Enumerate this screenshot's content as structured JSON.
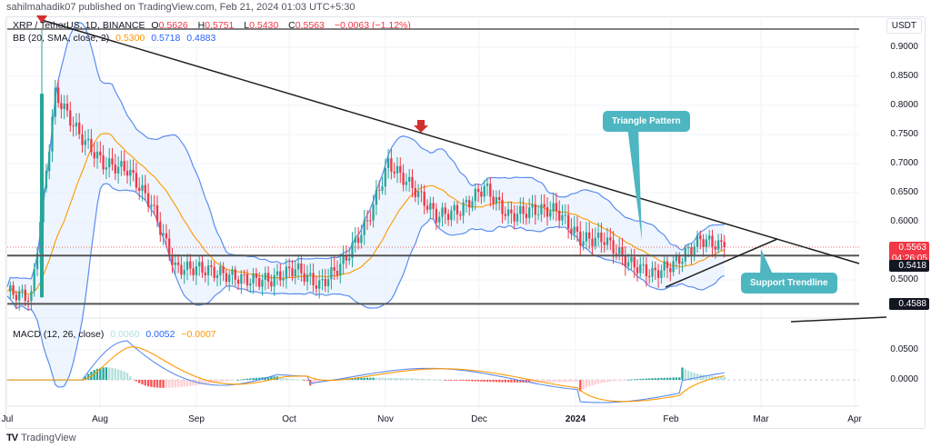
{
  "header": {
    "published": "sahilmahadik07 published on TradingView.com, Feb 21, 2024 01:03 UTC+5:30"
  },
  "legend": {
    "symbol": "XRP / TetherUS, 1D, BINANCE",
    "open_label": "O",
    "open": "0.5626",
    "high_label": "H",
    "high": "0.5751",
    "low_label": "L",
    "low": "0.5430",
    "close_label": "C",
    "close": "0.5563",
    "change": "−0.0063 (−1.12%)",
    "bb_label": "BB (20, SMA, close, 2)",
    "bb_basis": "0.5300",
    "bb_upper": "0.5718",
    "bb_lower": "0.4883",
    "macd_label": "MACD (12, 26, close)",
    "macd_hist": "0.0060",
    "macd_line": "0.0052",
    "macd_signal": "−0.0007"
  },
  "price_axis": {
    "currency": "USDT",
    "ticks": [
      "0.9000",
      "0.8500",
      "0.8000",
      "0.7500",
      "0.7000",
      "0.6500",
      "0.6000",
      "0.5000"
    ],
    "badges": {
      "last_price": "0.5563",
      "countdown": "04:26:05",
      "resistance": "0.5418",
      "support": "0.4588"
    }
  },
  "macd_axis": {
    "ticks": [
      "0.0500",
      "0.0000"
    ]
  },
  "time_axis": {
    "labels": [
      "Jul",
      "Aug",
      "Sep",
      "Oct",
      "Nov",
      "Dec",
      "2024",
      "Feb",
      "Mar",
      "Apr"
    ]
  },
  "annotations": {
    "triangle": "Triangle Pattern",
    "support_trendline": "Support Trendline"
  },
  "footer": {
    "brand": "TradingView",
    "logo": "TV"
  },
  "colors": {
    "up": "#26a69a",
    "down": "#f23645",
    "bb_band": "#5b8def",
    "bb_basis": "#ff9800",
    "bb_fill": "#e3effd",
    "macd": "#5b8def",
    "signal": "#ff9800",
    "callout": "#4db6c1"
  },
  "chart_data": {
    "type": "candlestick",
    "title": "XRP / TetherUS, 1D, BINANCE",
    "ylabel": "USDT",
    "ylim": [
      0.43,
      0.93
    ],
    "x_labels": [
      "Jul",
      "Aug",
      "Sep",
      "Oct",
      "Nov",
      "Dec",
      "2024",
      "Feb",
      "Mar",
      "Apr"
    ],
    "key_levels": {
      "horizontal_resistance": 0.5418,
      "horizontal_support": 0.4588,
      "last_price": 0.5563
    },
    "trendlines": [
      {
        "name": "Descending trendline (Triangle Pattern)",
        "from": [
          0.92,
          "Jul"
        ],
        "to": [
          0.54,
          "Mar"
        ]
      },
      {
        "name": "Support Trendline",
        "from": [
          0.48,
          "late Jan"
        ],
        "to": [
          0.57,
          "late Feb"
        ]
      }
    ],
    "series": [
      {
        "name": "XRP close (approx.)",
        "points": [
          [
            "Jul 1",
            0.48
          ],
          [
            "Jul 10",
            0.47
          ],
          [
            "Jul 13",
            0.82
          ],
          [
            "Jul 20",
            0.75
          ],
          [
            "Jul 25",
            0.7
          ],
          [
            "Aug 1",
            0.69
          ],
          [
            "Aug 10",
            0.63
          ],
          [
            "Aug 17",
            0.52
          ],
          [
            "Aug 25",
            0.52
          ],
          [
            "Sep 1",
            0.51
          ],
          [
            "Sep 10",
            0.5
          ],
          [
            "Sep 20",
            0.5
          ],
          [
            "Oct 1",
            0.52
          ],
          [
            "Oct 10",
            0.49
          ],
          [
            "Oct 20",
            0.53
          ],
          [
            "Nov 1",
            0.6
          ],
          [
            "Nov 5",
            0.7
          ],
          [
            "Nov 13",
            0.66
          ],
          [
            "Nov 20",
            0.61
          ],
          [
            "Nov 30",
            0.62
          ],
          [
            "Dec 5",
            0.66
          ],
          [
            "Dec 15",
            0.61
          ],
          [
            "Dec 25",
            0.62
          ],
          [
            "Jan 1",
            0.62
          ],
          [
            "Jan 5",
            0.57
          ],
          [
            "Jan 15",
            0.57
          ],
          [
            "Jan 25",
            0.53
          ],
          [
            "Feb 1",
            0.51
          ],
          [
            "Feb 10",
            0.53
          ],
          [
            "Feb 15",
            0.57
          ],
          [
            "Feb 20",
            0.5563
          ]
        ]
      },
      {
        "name": "MACD",
        "values_range": [
          -0.03,
          0.07
        ]
      },
      {
        "name": "MACD Signal",
        "values_range": [
          -0.028,
          0.065
        ]
      }
    ]
  }
}
